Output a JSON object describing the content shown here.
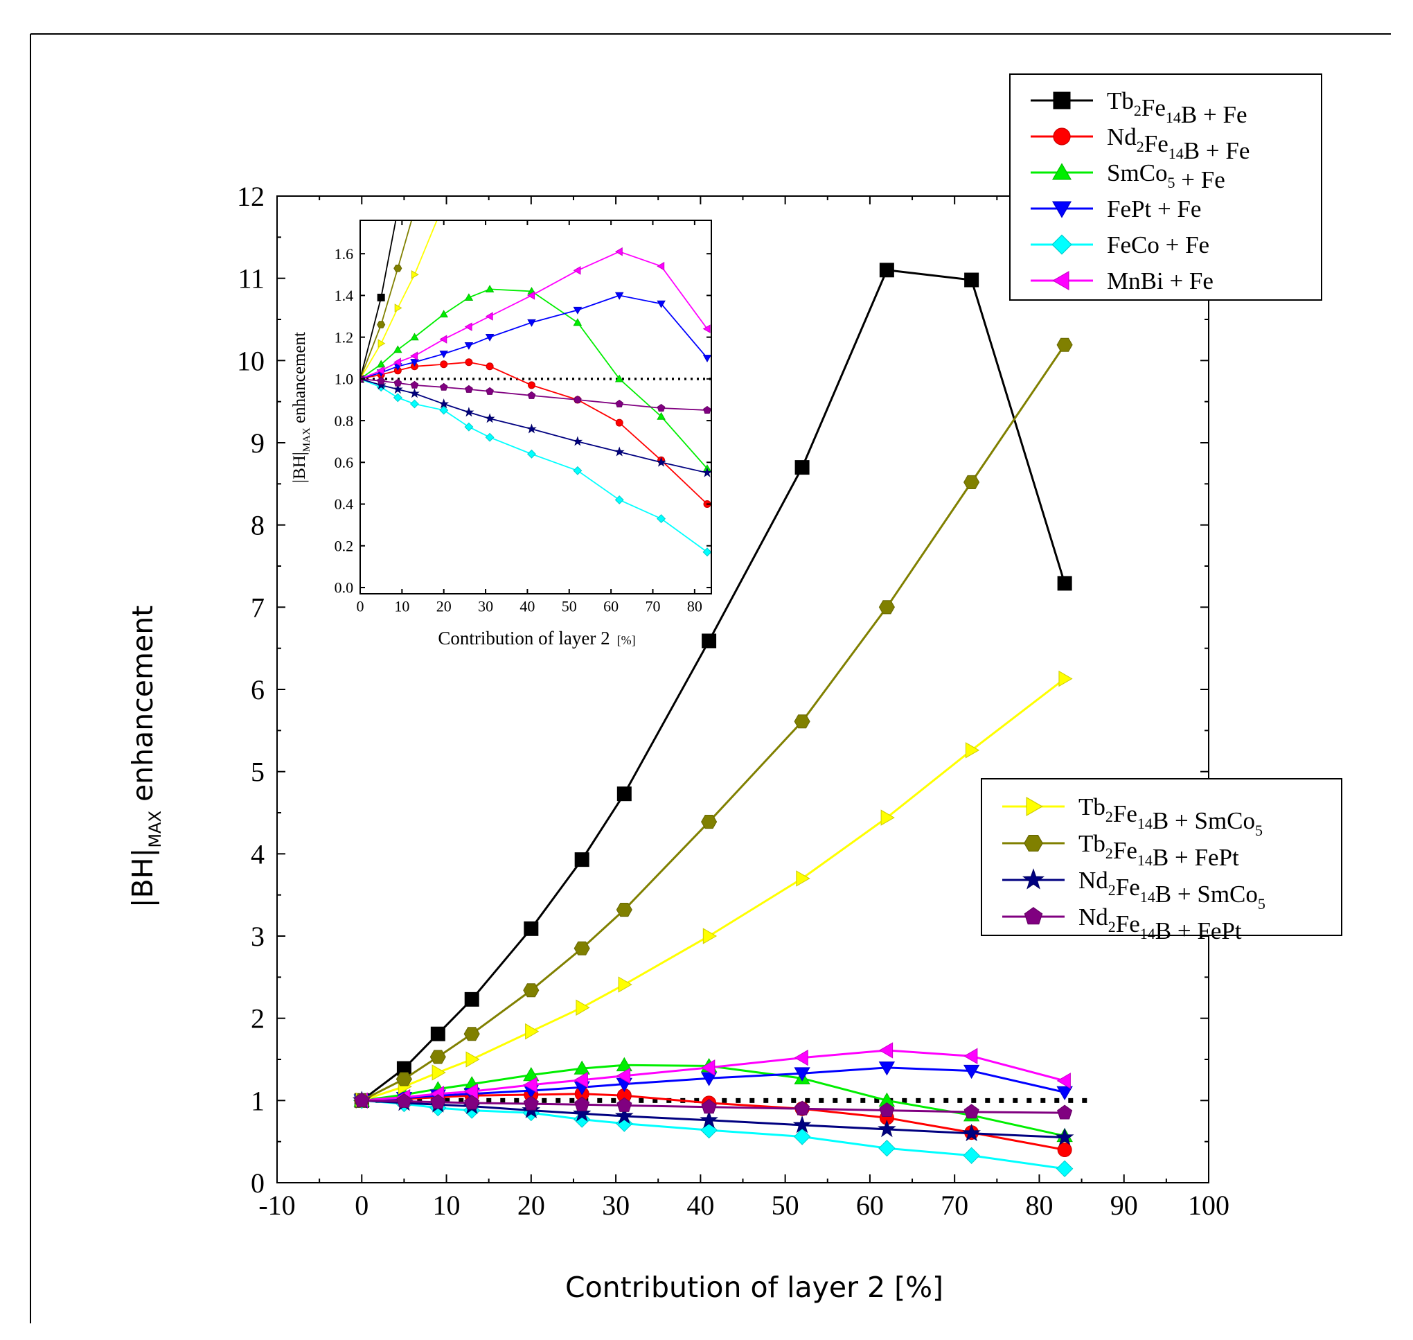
{
  "chart_data": [
    {
      "type": "line",
      "role": "main",
      "xlabel": "Contribution of layer 2 [%]",
      "ylabel_parts": {
        "main": "|BH|",
        "sub": "MAX",
        "rest": " enhancement"
      },
      "xlim": [
        -10,
        100
      ],
      "ylim": [
        0,
        12
      ],
      "xticks": [
        -10,
        0,
        10,
        20,
        30,
        40,
        50,
        60,
        70,
        80,
        90,
        100
      ],
      "xtick_labels": [
        "-10",
        "0",
        "10",
        "20",
        "30",
        "40",
        "50",
        "60",
        "70",
        "80",
        "90",
        "100"
      ],
      "yticks": [
        0,
        1,
        2,
        3,
        4,
        5,
        6,
        7,
        8,
        9,
        10,
        11,
        12
      ],
      "ytick_labels": [
        "0",
        "1",
        "2",
        "3",
        "4",
        "5",
        "6",
        "7",
        "8",
        "9",
        "10",
        "11",
        "12"
      ],
      "x": [
        0,
        5,
        9,
        13,
        20,
        26,
        31,
        41,
        52,
        62,
        72,
        83
      ],
      "reference_line": 1.0,
      "series": [
        {
          "name": "Tb₂Fe₁₄B + Fe",
          "color": "#000000",
          "marker": "square",
          "values": [
            1.0,
            1.39,
            1.81,
            2.23,
            3.09,
            3.93,
            4.73,
            6.59,
            8.7,
            11.1,
            10.98,
            7.29
          ]
        },
        {
          "name": "Nd₂Fe₁₄B + Fe",
          "color": "#ff0000",
          "marker": "circle",
          "values": [
            1.0,
            1.02,
            1.04,
            1.06,
            1.07,
            1.08,
            1.06,
            0.97,
            0.9,
            0.79,
            0.61,
            0.4
          ]
        },
        {
          "name": "SmCo₅ + Fe",
          "color": "#00ee00",
          "marker": "triangle-up",
          "values": [
            1.0,
            1.07,
            1.14,
            1.2,
            1.31,
            1.39,
            1.43,
            1.42,
            1.27,
            1.0,
            0.82,
            0.57
          ]
        },
        {
          "name": "FePt + Fe",
          "color": "#0000ff",
          "marker": "triangle-down",
          "values": [
            1.0,
            1.03,
            1.06,
            1.08,
            1.12,
            1.16,
            1.2,
            1.27,
            1.33,
            1.4,
            1.36,
            1.1
          ]
        },
        {
          "name": "FeCo + Fe",
          "color": "#00ffff",
          "marker": "diamond",
          "values": [
            1.0,
            0.96,
            0.91,
            0.88,
            0.85,
            0.77,
            0.72,
            0.64,
            0.56,
            0.42,
            0.33,
            0.17
          ]
        },
        {
          "name": "MnBi + Fe",
          "color": "#ff00ff",
          "marker": "triangle-left",
          "values": [
            1.0,
            1.04,
            1.08,
            1.11,
            1.19,
            1.25,
            1.3,
            1.4,
            1.52,
            1.61,
            1.54,
            1.24
          ]
        },
        {
          "name": "Tb₂Fe₁₄B + SmCo₅",
          "color": "#ffff00",
          "marker": "triangle-right",
          "values": [
            1.0,
            1.17,
            1.34,
            1.5,
            1.84,
            2.13,
            2.41,
            3.0,
            3.7,
            4.44,
            5.26,
            6.13
          ]
        },
        {
          "name": "Tb₂Fe₁₄B + FePt",
          "color": "#808000",
          "marker": "hexagon",
          "values": [
            1.0,
            1.26,
            1.53,
            1.81,
            2.34,
            2.85,
            3.32,
            4.39,
            5.61,
            7.0,
            8.52,
            10.19
          ]
        },
        {
          "name": "Nd₂Fe₁₄B + SmCo₅",
          "color": "#000080",
          "marker": "star",
          "values": [
            1.0,
            0.97,
            0.95,
            0.93,
            0.88,
            0.84,
            0.81,
            0.76,
            0.7,
            0.65,
            0.6,
            0.55
          ]
        },
        {
          "name": "Nd₂Fe₁₄B + FePt",
          "color": "#800080",
          "marker": "pentagon",
          "values": [
            1.0,
            0.99,
            0.98,
            0.97,
            0.96,
            0.95,
            0.94,
            0.92,
            0.9,
            0.88,
            0.86,
            0.85
          ]
        }
      ],
      "legends": [
        {
          "placement": "top-right",
          "entries": [
            {
              "color": "#000000",
              "marker": "square",
              "parts": [
                [
                  "Tb",
                  ""
                ],
                [
                  "2",
                  "sub"
                ],
                [
                  "Fe",
                  ""
                ],
                [
                  "14",
                  "sub"
                ],
                [
                  "B  +  Fe",
                  ""
                ]
              ]
            },
            {
              "color": "#ff0000",
              "marker": "circle",
              "parts": [
                [
                  "Nd",
                  ""
                ],
                [
                  "2",
                  "sub"
                ],
                [
                  "Fe",
                  ""
                ],
                [
                  "14",
                  "sub"
                ],
                [
                  "B  +  Fe",
                  ""
                ]
              ]
            },
            {
              "color": "#00ee00",
              "marker": "triangle-up",
              "parts": [
                [
                  "SmCo",
                  ""
                ],
                [
                  "5",
                  "sub"
                ],
                [
                  "  +  Fe",
                  ""
                ]
              ]
            },
            {
              "color": "#0000ff",
              "marker": "triangle-down",
              "parts": [
                [
                  "FePt  +  Fe",
                  ""
                ]
              ]
            },
            {
              "color": "#00ffff",
              "marker": "diamond",
              "parts": [
                [
                  "FeCo  +  Fe",
                  ""
                ]
              ]
            },
            {
              "color": "#ff00ff",
              "marker": "triangle-left",
              "parts": [
                [
                  "MnBi  +  Fe",
                  ""
                ]
              ]
            }
          ]
        },
        {
          "placement": "center-right",
          "entries": [
            {
              "color": "#ffff00",
              "marker": "triangle-right",
              "parts": [
                [
                  "Tb",
                  ""
                ],
                [
                  "2",
                  "sub"
                ],
                [
                  "Fe",
                  ""
                ],
                [
                  "14",
                  "sub"
                ],
                [
                  "B  +  SmCo",
                  ""
                ],
                [
                  "5",
                  "sub"
                ]
              ]
            },
            {
              "color": "#808000",
              "marker": "hexagon",
              "parts": [
                [
                  "Tb",
                  ""
                ],
                [
                  "2",
                  "sub"
                ],
                [
                  "Fe",
                  ""
                ],
                [
                  "14",
                  "sub"
                ],
                [
                  "B  +  FePt",
                  ""
                ]
              ]
            },
            {
              "color": "#000080",
              "marker": "star",
              "parts": [
                [
                  "Nd",
                  ""
                ],
                [
                  "2",
                  "sub"
                ],
                [
                  "Fe",
                  ""
                ],
                [
                  "14",
                  "sub"
                ],
                [
                  "B  +  SmCo",
                  ""
                ],
                [
                  "5",
                  "sub"
                ]
              ]
            },
            {
              "color": "#800080",
              "marker": "pentagon",
              "parts": [
                [
                  "Nd",
                  ""
                ],
                [
                  "2",
                  "sub"
                ],
                [
                  "Fe",
                  ""
                ],
                [
                  "14",
                  "sub"
                ],
                [
                  "B  +  FePt",
                  ""
                ]
              ]
            }
          ]
        }
      ]
    },
    {
      "type": "line",
      "role": "inset",
      "xlabel": "Contribution of layer 2",
      "xlabel_unit": "[%]",
      "ylabel_parts": {
        "main": "|BH|",
        "sub": "MAX",
        "rest": " enhancement"
      },
      "xlim": [
        0,
        84
      ],
      "ylim": [
        -0.03,
        1.76
      ],
      "xticks": [
        0,
        10,
        20,
        30,
        40,
        50,
        60,
        70,
        80
      ],
      "xtick_labels": [
        "0",
        "10",
        "20",
        "30",
        "40",
        "50",
        "60",
        "70",
        "80"
      ],
      "yticks": [
        0,
        0.2,
        0.4,
        0.6,
        0.8,
        1.0,
        1.2,
        1.4,
        1.6
      ],
      "ytick_labels": [
        "0.0",
        "0.2",
        "0.4",
        "0.6",
        "0.8",
        "1.0",
        "1.2",
        "1.4",
        "1.6"
      ],
      "grid": false,
      "reference_line": 1.0,
      "x": [
        0,
        5,
        9,
        13,
        20,
        26,
        31,
        41,
        52,
        62,
        72,
        83
      ],
      "note": "same series as main chart, shown in the 0–1.7 range"
    }
  ]
}
